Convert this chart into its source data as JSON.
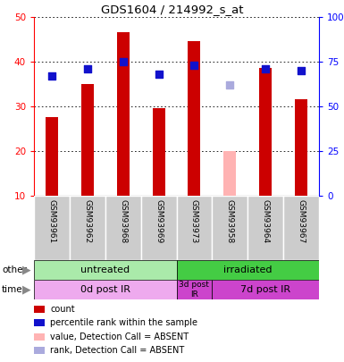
{
  "title": "GDS1604 / 214992_s_at",
  "samples": [
    "GSM93961",
    "GSM93962",
    "GSM93968",
    "GSM93969",
    "GSM93973",
    "GSM93958",
    "GSM93964",
    "GSM93967"
  ],
  "bar_values": [
    27.5,
    35.0,
    46.5,
    29.5,
    44.5,
    20.0,
    38.5,
    31.5
  ],
  "bar_absent": [
    false,
    false,
    false,
    false,
    false,
    true,
    false,
    false
  ],
  "rank_values": [
    67.0,
    71.0,
    75.0,
    68.0,
    73.0,
    62.0,
    71.0,
    70.0
  ],
  "rank_absent": [
    false,
    false,
    false,
    false,
    false,
    true,
    false,
    false
  ],
  "bar_color_present": "#cc0000",
  "bar_color_absent": "#ffb3b3",
  "rank_color_present": "#1111cc",
  "rank_color_absent": "#aaaadd",
  "ylim_left": [
    10,
    50
  ],
  "ylim_right": [
    0,
    100
  ],
  "yticks_left": [
    10,
    20,
    30,
    40,
    50
  ],
  "yticks_right": [
    0,
    25,
    50,
    75,
    100
  ],
  "ytick_labels_right": [
    "0",
    "25",
    "50",
    "75",
    "100%"
  ],
  "group_other": [
    {
      "label": "untreated",
      "start": 0,
      "end": 4,
      "color": "#aaeaaa"
    },
    {
      "label": "irradiated",
      "start": 4,
      "end": 8,
      "color": "#44cc44"
    }
  ],
  "group_time": [
    {
      "label": "0d post IR",
      "start": 0,
      "end": 4,
      "color": "#eeaaee"
    },
    {
      "label": "3d post\nIR",
      "start": 4,
      "end": 5,
      "color": "#cc44cc"
    },
    {
      "label": "7d post IR",
      "start": 5,
      "end": 8,
      "color": "#cc44cc"
    }
  ],
  "other_label": "other",
  "time_label": "time",
  "legend_items": [
    {
      "label": "count",
      "color": "#cc0000"
    },
    {
      "label": "percentile rank within the sample",
      "color": "#1111cc"
    },
    {
      "label": "value, Detection Call = ABSENT",
      "color": "#ffb3b3"
    },
    {
      "label": "rank, Detection Call = ABSENT",
      "color": "#aaaadd"
    }
  ],
  "bar_width": 0.35,
  "grid_color": "#000000",
  "background_color": "#ffffff",
  "n_samples": 8
}
